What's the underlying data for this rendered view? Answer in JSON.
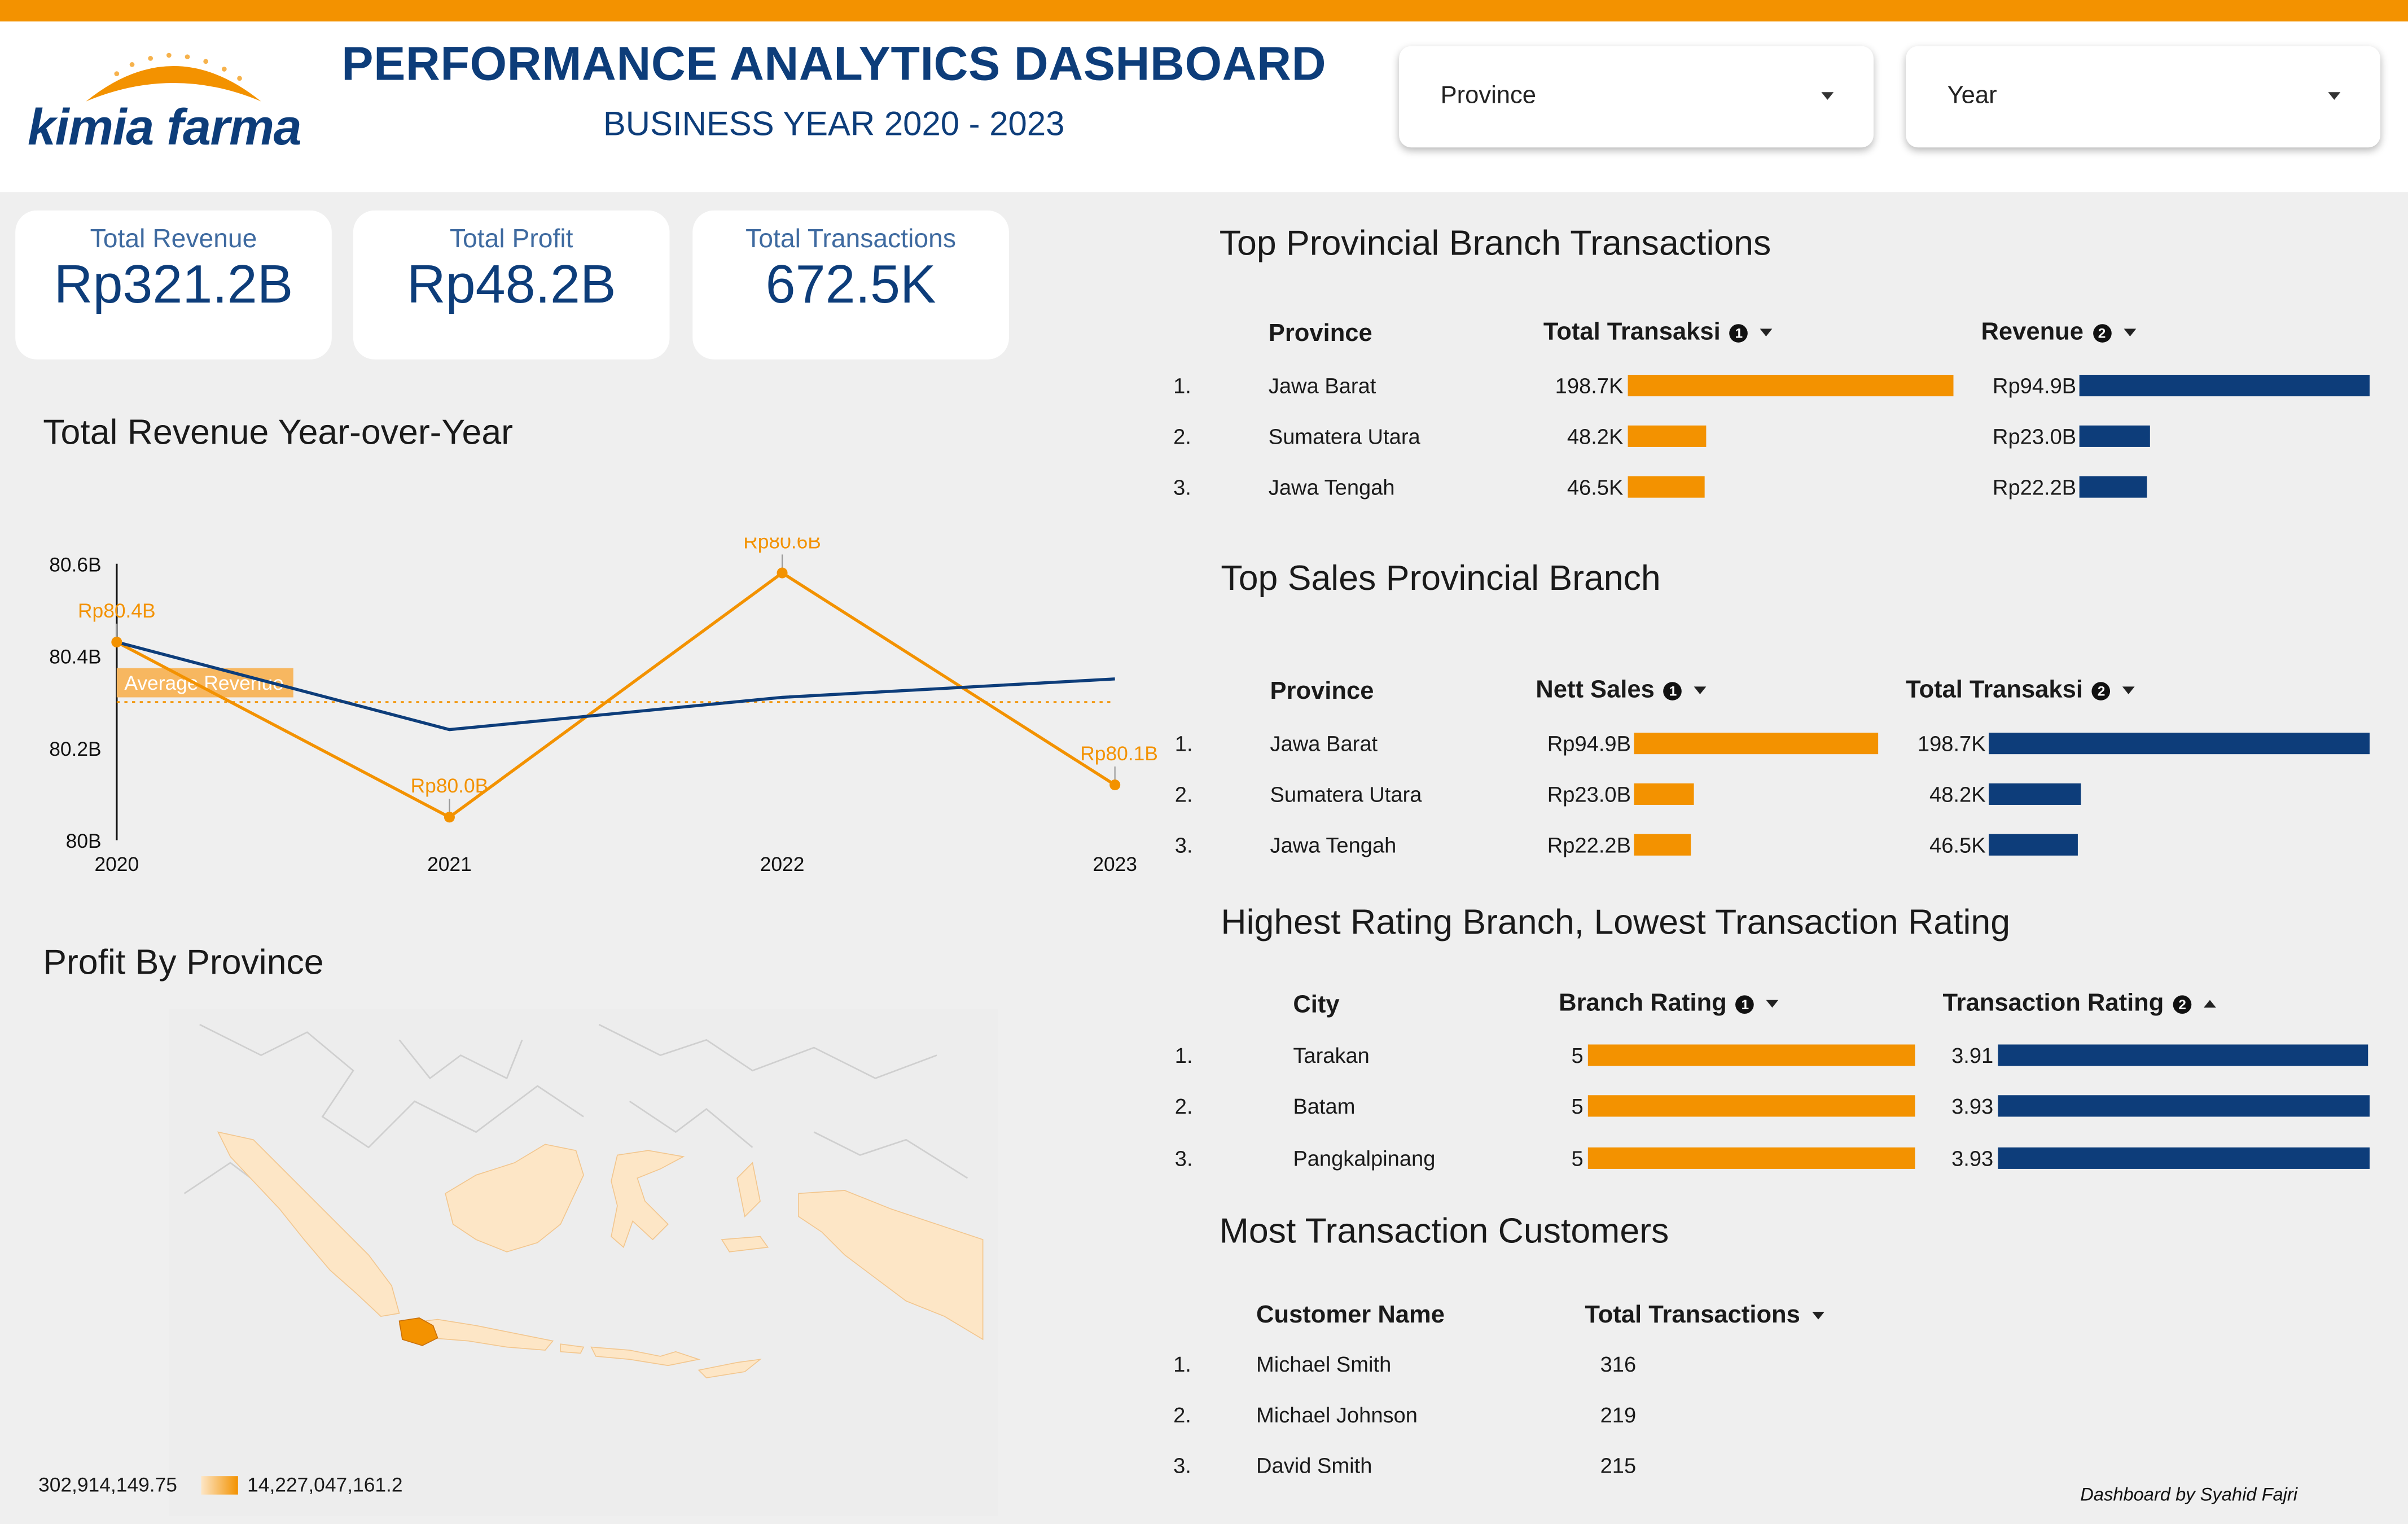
{
  "header": {
    "logo_text": "kimia farma",
    "title": "PERFORMANCE ANALYTICS DASHBOARD",
    "subtitle": "BUSINESS YEAR 2020 - 2023",
    "filters": [
      {
        "label": "Province",
        "icon": "dropdown-caret"
      },
      {
        "label": "Year",
        "icon": "dropdown-caret"
      }
    ]
  },
  "kpis": [
    {
      "label": "Total Revenue",
      "value": "Rp321.2B"
    },
    {
      "label": "Total Profit",
      "value": "Rp48.2B"
    },
    {
      "label": "Total Transactions",
      "value": "672.5K"
    }
  ],
  "revenue_chart": {
    "section_title": "Total Revenue Year-over-Year",
    "avg_label": "Average Revenue",
    "y_ticks": [
      "80.6B",
      "80.4B",
      "80.2B",
      "80B"
    ],
    "x_ticks": [
      "2020",
      "2021",
      "2022",
      "2023"
    ],
    "point_labels": [
      "Rp80.4B",
      "Rp80.0B",
      "Rp80.6B",
      "Rp80.1B"
    ]
  },
  "chart_data": {
    "type": "line",
    "title": "Total Revenue Year-over-Year",
    "x": [
      "2020",
      "2021",
      "2022",
      "2023"
    ],
    "ylim": [
      80.0,
      80.6
    ],
    "y_unit": "B",
    "series": [
      {
        "values": [
          80.43,
          80.05,
          80.58,
          80.12
        ],
        "color": "#f39200"
      },
      {
        "values": [
          80.43,
          80.24,
          80.31,
          80.35
        ],
        "color": "#0d3d7a"
      }
    ],
    "reference_line": {
      "label": "Average Revenue",
      "value": 80.3,
      "color": "#f39200"
    },
    "grid": false
  },
  "map": {
    "section_title": "Profit By Province",
    "legend_min": "302,914,149.75",
    "legend_max": "14,227,047,161.2",
    "colors": {
      "low": "#fde6c6",
      "high": "#f39200"
    }
  },
  "top_transactions": {
    "section_title": "Top Provincial Branch Transactions",
    "headers": [
      "Province",
      "Total Transaksi",
      "Revenue"
    ],
    "rows": [
      {
        "rank": "1.",
        "province": "Jawa Barat",
        "transaksi": "198.7K",
        "transaksi_val": 198.7,
        "revenue": "Rp94.9B",
        "revenue_val": 94.9
      },
      {
        "rank": "2.",
        "province": "Sumatera Utara",
        "transaksi": "48.2K",
        "transaksi_val": 48.2,
        "revenue": "Rp23.0B",
        "revenue_val": 23.0
      },
      {
        "rank": "3.",
        "province": "Jawa Tengah",
        "transaksi": "46.5K",
        "transaksi_val": 46.5,
        "revenue": "Rp22.2B",
        "revenue_val": 22.2
      }
    ]
  },
  "top_sales": {
    "section_title": "Top Sales Provincial Branch",
    "headers": [
      "Province",
      "Nett Sales",
      "Total Transaksi"
    ],
    "rows": [
      {
        "rank": "1.",
        "province": "Jawa Barat",
        "sales": "Rp94.9B",
        "sales_val": 94.9,
        "transaksi": "198.7K",
        "transaksi_val": 198.7
      },
      {
        "rank": "2.",
        "province": "Sumatera Utara",
        "sales": "Rp23.0B",
        "sales_val": 23.0,
        "transaksi": "48.2K",
        "transaksi_val": 48.2
      },
      {
        "rank": "3.",
        "province": "Jawa Tengah",
        "sales": "Rp22.2B",
        "sales_val": 22.2,
        "transaksi": "46.5K",
        "transaksi_val": 46.5
      }
    ]
  },
  "rating": {
    "section_title": "Highest Rating Branch, Lowest Transaction Rating",
    "headers": [
      "City",
      "Branch Rating",
      "Transaction Rating"
    ],
    "rows": [
      {
        "rank": "1.",
        "city": "Tarakan",
        "branch": "5",
        "branch_val": 5,
        "trx": "3.91",
        "trx_val": 3.91
      },
      {
        "rank": "2.",
        "city": "Batam",
        "branch": "5",
        "branch_val": 5,
        "trx": "3.93",
        "trx_val": 3.93
      },
      {
        "rank": "3.",
        "city": "Pangkalpinang",
        "branch": "5",
        "branch_val": 5,
        "trx": "3.93",
        "trx_val": 3.93
      }
    ]
  },
  "customers": {
    "section_title": "Most Transaction Customers",
    "headers": [
      "Customer Name",
      "Total Transactions"
    ],
    "rows": [
      {
        "rank": "1.",
        "name": "Michael Smith",
        "total": "316"
      },
      {
        "rank": "2.",
        "name": "Michael Johnson",
        "total": "219"
      },
      {
        "rank": "3.",
        "name": "David Smith",
        "total": "215"
      }
    ]
  },
  "footer": {
    "credit": "Dashboard by Syahid Fajri"
  }
}
